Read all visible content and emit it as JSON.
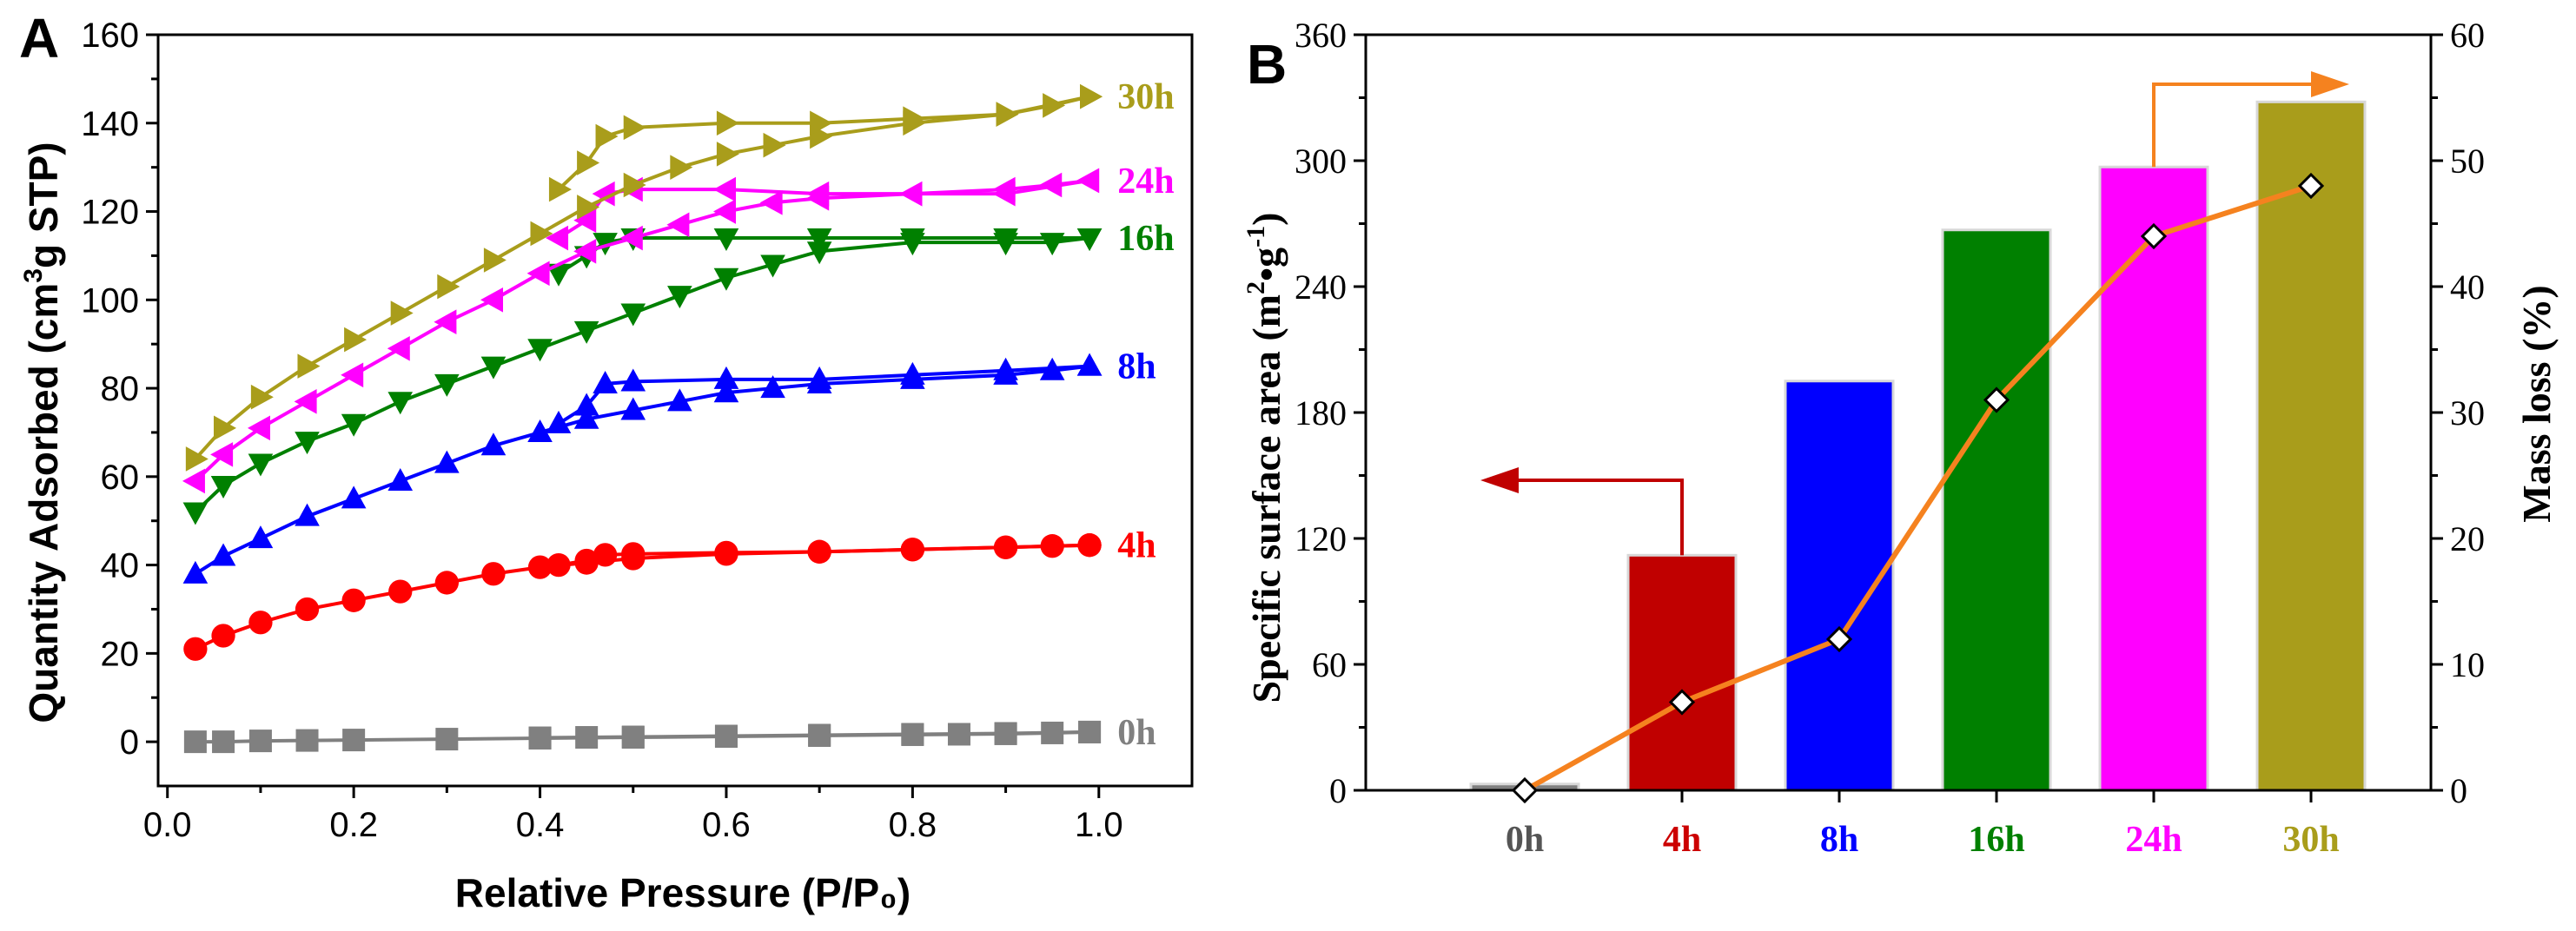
{
  "chart_data": [
    {
      "panel": "A",
      "type": "scatter",
      "xlabel": "Relative Pressure (P/P₀)",
      "ylabel_parts": [
        "Quantity Adsorbed (cm",
        "3",
        "g STP)"
      ],
      "xlim": [
        -0.01,
        1.1
      ],
      "ylim": [
        -10,
        160
      ],
      "xticks": [
        0.0,
        0.2,
        0.4,
        0.6,
        0.8,
        1.0
      ],
      "xtick_labels": [
        "0.0",
        "0.2",
        "0.4",
        "0.6",
        "0.8",
        "1.0"
      ],
      "yticks": [
        0,
        20,
        40,
        60,
        80,
        100,
        120,
        140,
        160
      ],
      "ytick_labels": [
        "0",
        "20",
        "40",
        "60",
        "80",
        "100",
        "120",
        "140",
        "160"
      ],
      "series": [
        {
          "name": "0h",
          "color": "#808080",
          "marker": "square",
          "adsorption": [
            [
              0.03,
              0.0
            ],
            [
              0.06,
              0.0
            ],
            [
              0.1,
              0.2
            ],
            [
              0.15,
              0.3
            ],
            [
              0.2,
              0.4
            ],
            [
              0.3,
              0.6
            ],
            [
              0.4,
              0.8
            ],
            [
              0.5,
              1.0
            ],
            [
              0.6,
              1.2
            ],
            [
              0.7,
              1.4
            ],
            [
              0.8,
              1.6
            ],
            [
              0.85,
              1.7
            ],
            [
              0.9,
              1.8
            ],
            [
              0.95,
              2.0
            ],
            [
              0.99,
              2.2
            ]
          ],
          "desorption": [
            [
              0.99,
              2.2
            ],
            [
              0.9,
              1.9
            ],
            [
              0.8,
              1.7
            ],
            [
              0.7,
              1.5
            ],
            [
              0.6,
              1.3
            ],
            [
              0.5,
              1.1
            ],
            [
              0.45,
              1.0
            ],
            [
              0.4,
              0.9
            ]
          ]
        },
        {
          "name": "4h",
          "color": "#ff0000",
          "marker": "circle",
          "adsorption": [
            [
              0.03,
              21
            ],
            [
              0.06,
              24
            ],
            [
              0.1,
              27
            ],
            [
              0.15,
              30
            ],
            [
              0.2,
              32
            ],
            [
              0.25,
              34
            ],
            [
              0.3,
              36
            ],
            [
              0.35,
              38
            ],
            [
              0.4,
              39.5
            ],
            [
              0.45,
              40.5
            ],
            [
              0.5,
              41.5
            ],
            [
              0.6,
              42.5
            ],
            [
              0.7,
              43
            ],
            [
              0.8,
              43.5
            ],
            [
              0.9,
              44
            ],
            [
              0.95,
              44.3
            ],
            [
              0.99,
              44.5
            ]
          ],
          "desorption": [
            [
              0.99,
              44.5
            ],
            [
              0.9,
              44
            ],
            [
              0.8,
              43.5
            ],
            [
              0.7,
              43
            ],
            [
              0.6,
              42.8
            ],
            [
              0.5,
              42.5
            ],
            [
              0.47,
              42.3
            ],
            [
              0.45,
              41
            ],
            [
              0.42,
              40
            ]
          ]
        },
        {
          "name": "8h",
          "color": "#0000ff",
          "marker": "triangle-up",
          "adsorption": [
            [
              0.03,
              38
            ],
            [
              0.06,
              42
            ],
            [
              0.1,
              46
            ],
            [
              0.15,
              51
            ],
            [
              0.2,
              55
            ],
            [
              0.25,
              59
            ],
            [
              0.3,
              63
            ],
            [
              0.35,
              67
            ],
            [
              0.4,
              70
            ],
            [
              0.45,
              73
            ],
            [
              0.5,
              75
            ],
            [
              0.55,
              77
            ],
            [
              0.6,
              79
            ],
            [
              0.65,
              80
            ],
            [
              0.7,
              81
            ],
            [
              0.8,
              82
            ],
            [
              0.9,
              83
            ],
            [
              0.95,
              84
            ],
            [
              0.99,
              85
            ]
          ],
          "desorption": [
            [
              0.99,
              85
            ],
            [
              0.9,
              84
            ],
            [
              0.8,
              83
            ],
            [
              0.7,
              82
            ],
            [
              0.6,
              82
            ],
            [
              0.5,
              81.5
            ],
            [
              0.47,
              81
            ],
            [
              0.45,
              76
            ],
            [
              0.42,
              72
            ]
          ]
        },
        {
          "name": "16h",
          "color": "#008000",
          "marker": "triangle-down",
          "adsorption": [
            [
              0.03,
              52
            ],
            [
              0.06,
              58
            ],
            [
              0.1,
              63
            ],
            [
              0.15,
              68
            ],
            [
              0.2,
              72
            ],
            [
              0.25,
              77
            ],
            [
              0.3,
              81
            ],
            [
              0.35,
              85
            ],
            [
              0.4,
              89
            ],
            [
              0.45,
              93
            ],
            [
              0.5,
              97
            ],
            [
              0.55,
              101
            ],
            [
              0.6,
              105
            ],
            [
              0.65,
              108
            ],
            [
              0.7,
              111
            ],
            [
              0.8,
              113
            ],
            [
              0.9,
              113
            ],
            [
              0.95,
              113
            ],
            [
              0.99,
              114
            ]
          ],
          "desorption": [
            [
              0.99,
              114
            ],
            [
              0.9,
              114
            ],
            [
              0.8,
              114
            ],
            [
              0.7,
              114
            ],
            [
              0.6,
              114
            ],
            [
              0.5,
              114
            ],
            [
              0.47,
              113
            ],
            [
              0.45,
              110
            ],
            [
              0.42,
              106
            ]
          ]
        },
        {
          "name": "24h",
          "color": "#ff00ff",
          "marker": "triangle-left",
          "adsorption": [
            [
              0.03,
              59
            ],
            [
              0.06,
              65
            ],
            [
              0.1,
              71
            ],
            [
              0.15,
              77
            ],
            [
              0.2,
              83
            ],
            [
              0.25,
              89
            ],
            [
              0.3,
              95
            ],
            [
              0.35,
              100
            ],
            [
              0.4,
              106
            ],
            [
              0.45,
              111
            ],
            [
              0.5,
              114
            ],
            [
              0.55,
              117
            ],
            [
              0.6,
              120
            ],
            [
              0.65,
              122
            ],
            [
              0.7,
              123
            ],
            [
              0.8,
              124
            ],
            [
              0.9,
              125
            ],
            [
              0.95,
              126
            ],
            [
              0.99,
              127
            ]
          ],
          "desorption": [
            [
              0.99,
              127
            ],
            [
              0.9,
              124
            ],
            [
              0.8,
              124
            ],
            [
              0.7,
              124
            ],
            [
              0.6,
              125
            ],
            [
              0.5,
              125
            ],
            [
              0.47,
              124
            ],
            [
              0.45,
              118
            ],
            [
              0.42,
              114
            ]
          ]
        },
        {
          "name": "30h",
          "color": "#a99d1b",
          "marker": "triangle-right",
          "adsorption": [
            [
              0.03,
              64
            ],
            [
              0.06,
              71
            ],
            [
              0.1,
              78
            ],
            [
              0.15,
              85
            ],
            [
              0.2,
              91
            ],
            [
              0.25,
              97
            ],
            [
              0.3,
              103
            ],
            [
              0.35,
              109
            ],
            [
              0.4,
              115
            ],
            [
              0.45,
              121
            ],
            [
              0.5,
              126
            ],
            [
              0.55,
              130
            ],
            [
              0.6,
              133
            ],
            [
              0.65,
              135
            ],
            [
              0.7,
              137
            ],
            [
              0.8,
              140
            ],
            [
              0.9,
              142
            ],
            [
              0.95,
              144
            ],
            [
              0.99,
              146
            ]
          ],
          "desorption": [
            [
              0.99,
              146
            ],
            [
              0.9,
              142
            ],
            [
              0.8,
              141
            ],
            [
              0.7,
              140
            ],
            [
              0.6,
              140
            ],
            [
              0.5,
              139
            ],
            [
              0.47,
              137
            ],
            [
              0.45,
              131
            ],
            [
              0.42,
              125
            ]
          ]
        }
      ],
      "annotations": [
        "0h",
        "4h",
        "8h",
        "16h",
        "24h",
        "30h"
      ]
    },
    {
      "panel": "B",
      "type": "bar",
      "categories": [
        "0h",
        "4h",
        "8h",
        "16h",
        "24h",
        "30h"
      ],
      "category_colors": [
        "#555555",
        "#cc0000",
        "#0000ff",
        "#008000",
        "#ff00ff",
        "#a99d1b"
      ],
      "bar_colors": [
        "#808080",
        "#c00000",
        "#0000ff",
        "#008000",
        "#ff00ff",
        "#a99d1b"
      ],
      "values": [
        3,
        112,
        195,
        267,
        297,
        328
      ],
      "ylabel": "Specific surface area (m²•g⁻¹)",
      "ylabel_parts": [
        "Specific surface area (m",
        "2",
        "•g",
        "-1",
        ")"
      ],
      "ylim": [
        0,
        360
      ],
      "yticks": [
        0,
        60,
        120,
        180,
        240,
        300,
        360
      ],
      "ytick_labels": [
        "0",
        "60",
        "120",
        "180",
        "240",
        "300",
        "360"
      ],
      "y2label": "Mass loss (%)",
      "y2lim": [
        0,
        60
      ],
      "y2ticks": [
        0,
        10,
        20,
        30,
        40,
        50,
        60
      ],
      "y2tick_labels": [
        "0",
        "10",
        "20",
        "30",
        "40",
        "50",
        "60"
      ],
      "line_series": {
        "name": "Mass loss",
        "axis": "right",
        "color": "#f5821f",
        "marker": "diamond",
        "values": [
          0,
          7,
          12,
          31,
          44,
          48
        ]
      }
    }
  ]
}
